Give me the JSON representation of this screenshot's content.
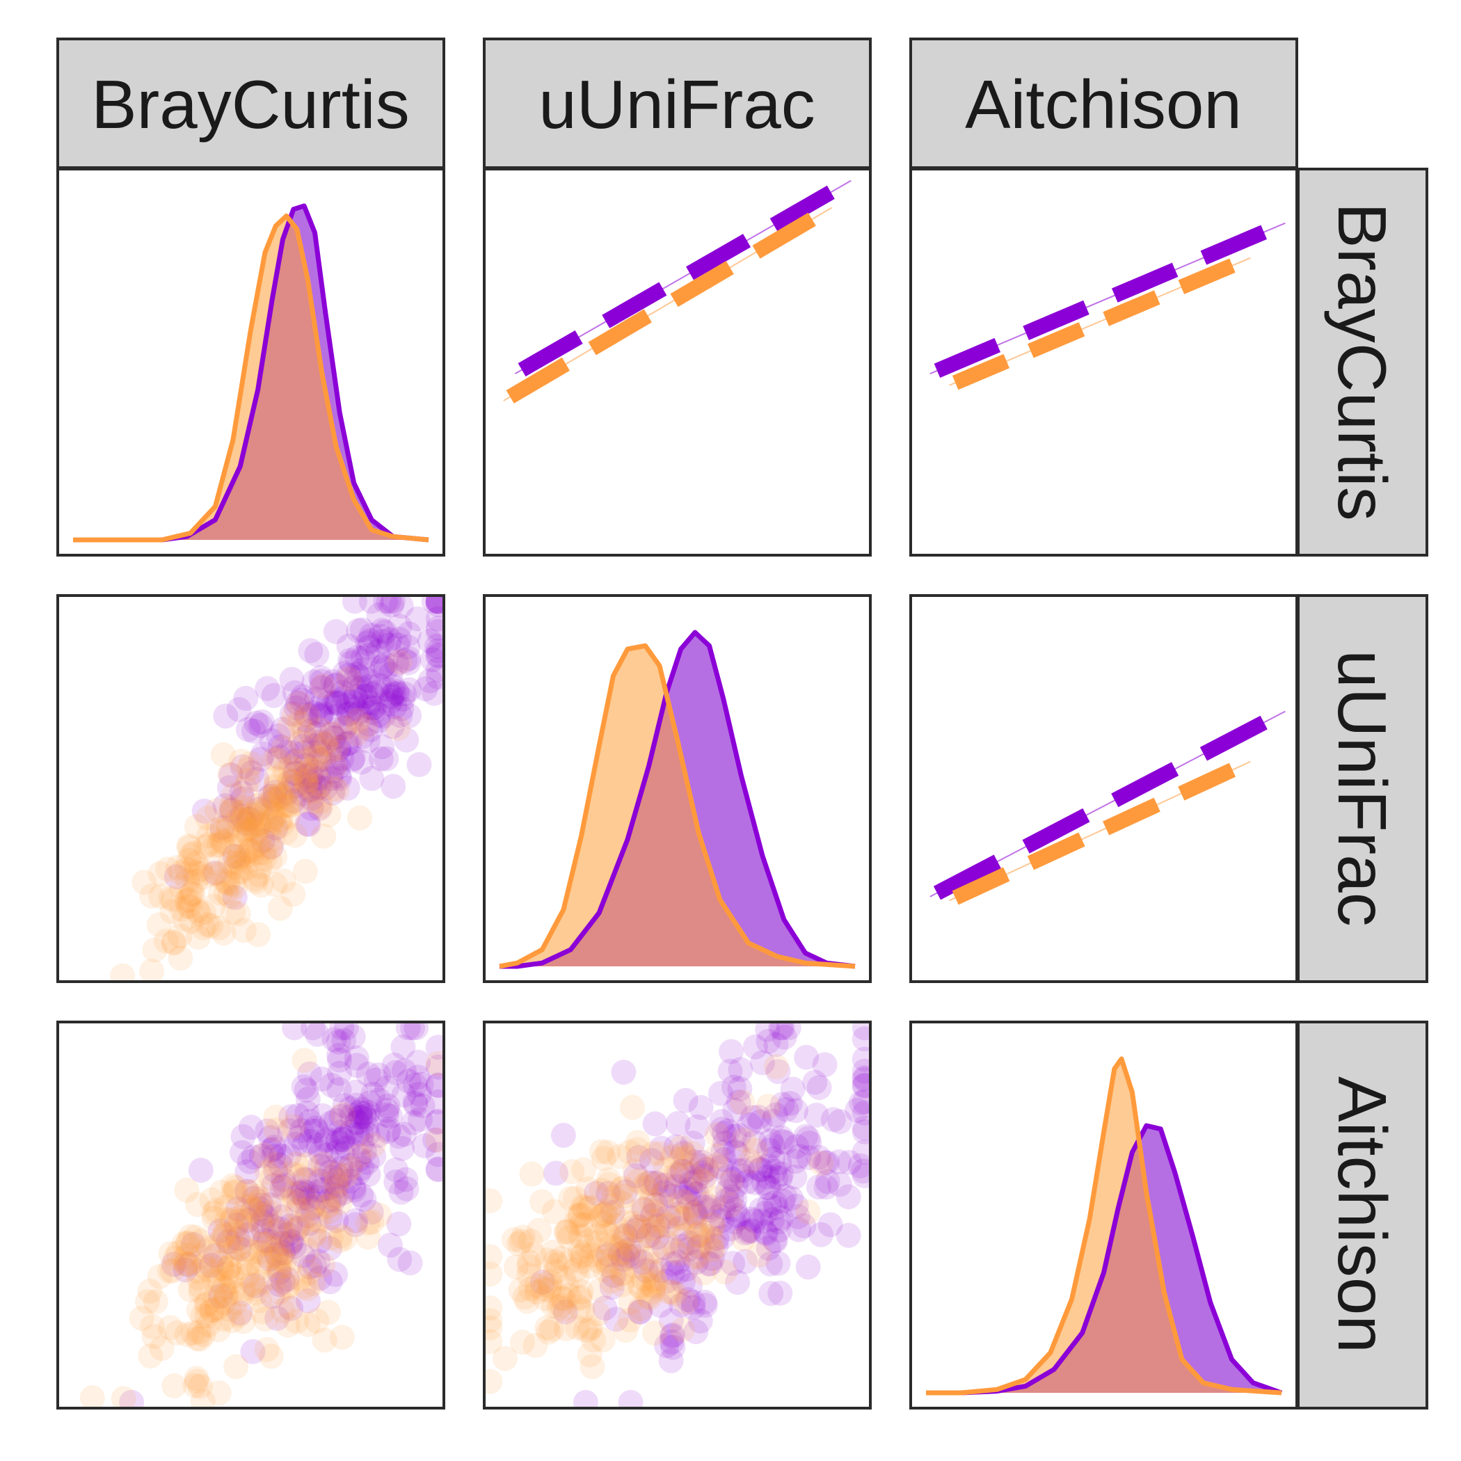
{
  "colors": {
    "group_a": "#8B00D6",
    "group_a_fill": "#B56FE3",
    "group_b": "#FF9A3C",
    "group_b_fill": "#FDCB93",
    "overlap_fill": "#DE8A86",
    "strip_bg": "#D3D3D3",
    "panel_border": "#2B2B2B"
  },
  "chart_data": {
    "type": "pairs-matrix",
    "variables": [
      "BrayCurtis",
      "uUniFrac",
      "Aitchison"
    ],
    "column_strips": [
      "BrayCurtis",
      "uUniFrac",
      "Aitchison"
    ],
    "row_strips": [
      "BrayCurtis",
      "uUniFrac",
      "Aitchison"
    ],
    "axis_ticks_shown": false,
    "grid": false,
    "legend": "none",
    "groups": [
      "a",
      "b"
    ],
    "density": {
      "BrayCurtis": {
        "a": [
          [
            0,
            0
          ],
          [
            0.15,
            0
          ],
          [
            0.25,
            0
          ],
          [
            0.32,
            0.01
          ],
          [
            0.4,
            0.06
          ],
          [
            0.47,
            0.22
          ],
          [
            0.52,
            0.45
          ],
          [
            0.56,
            0.72
          ],
          [
            0.59,
            0.9
          ],
          [
            0.62,
            0.99
          ],
          [
            0.65,
            1.0
          ],
          [
            0.68,
            0.92
          ],
          [
            0.71,
            0.68
          ],
          [
            0.75,
            0.38
          ],
          [
            0.79,
            0.17
          ],
          [
            0.84,
            0.06
          ],
          [
            0.9,
            0.01
          ],
          [
            1.0,
            0
          ]
        ],
        "b": [
          [
            0,
            0
          ],
          [
            0.15,
            0
          ],
          [
            0.25,
            0
          ],
          [
            0.33,
            0.02
          ],
          [
            0.4,
            0.1
          ],
          [
            0.45,
            0.3
          ],
          [
            0.5,
            0.63
          ],
          [
            0.54,
            0.86
          ],
          [
            0.57,
            0.94
          ],
          [
            0.6,
            0.97
          ],
          [
            0.63,
            0.93
          ],
          [
            0.66,
            0.78
          ],
          [
            0.7,
            0.5
          ],
          [
            0.74,
            0.28
          ],
          [
            0.79,
            0.12
          ],
          [
            0.84,
            0.03
          ],
          [
            0.9,
            0.01
          ],
          [
            1.0,
            0
          ]
        ]
      },
      "uUniFrac": {
        "a": [
          [
            0,
            0
          ],
          [
            0.05,
            0
          ],
          [
            0.12,
            0.01
          ],
          [
            0.2,
            0.05
          ],
          [
            0.28,
            0.16
          ],
          [
            0.36,
            0.38
          ],
          [
            0.42,
            0.6
          ],
          [
            0.47,
            0.82
          ],
          [
            0.51,
            0.95
          ],
          [
            0.55,
            1.0
          ],
          [
            0.59,
            0.96
          ],
          [
            0.63,
            0.8
          ],
          [
            0.68,
            0.57
          ],
          [
            0.74,
            0.33
          ],
          [
            0.8,
            0.14
          ],
          [
            0.86,
            0.04
          ],
          [
            0.92,
            0.01
          ],
          [
            1.0,
            0
          ]
        ],
        "b": [
          [
            0,
            0
          ],
          [
            0.05,
            0.01
          ],
          [
            0.12,
            0.05
          ],
          [
            0.18,
            0.17
          ],
          [
            0.23,
            0.39
          ],
          [
            0.28,
            0.66
          ],
          [
            0.32,
            0.87
          ],
          [
            0.36,
            0.95
          ],
          [
            0.41,
            0.96
          ],
          [
            0.45,
            0.9
          ],
          [
            0.5,
            0.68
          ],
          [
            0.56,
            0.4
          ],
          [
            0.62,
            0.2
          ],
          [
            0.7,
            0.07
          ],
          [
            0.78,
            0.03
          ],
          [
            0.86,
            0.01
          ],
          [
            0.93,
            0.005
          ],
          [
            1.0,
            0
          ]
        ]
      },
      "Aitchison": {
        "a": [
          [
            0,
            0
          ],
          [
            0.1,
            0
          ],
          [
            0.2,
            0.005
          ],
          [
            0.28,
            0.02
          ],
          [
            0.36,
            0.07
          ],
          [
            0.44,
            0.18
          ],
          [
            0.5,
            0.36
          ],
          [
            0.54,
            0.55
          ],
          [
            0.58,
            0.72
          ],
          [
            0.62,
            0.8
          ],
          [
            0.66,
            0.79
          ],
          [
            0.7,
            0.66
          ],
          [
            0.75,
            0.47
          ],
          [
            0.8,
            0.27
          ],
          [
            0.86,
            0.1
          ],
          [
            0.92,
            0.03
          ],
          [
            1.0,
            0
          ]
        ],
        "b": [
          [
            0,
            0
          ],
          [
            0.1,
            0
          ],
          [
            0.2,
            0.01
          ],
          [
            0.28,
            0.04
          ],
          [
            0.35,
            0.12
          ],
          [
            0.41,
            0.28
          ],
          [
            0.46,
            0.52
          ],
          [
            0.5,
            0.78
          ],
          [
            0.53,
            0.97
          ],
          [
            0.55,
            1.0
          ],
          [
            0.58,
            0.9
          ],
          [
            0.62,
            0.6
          ],
          [
            0.67,
            0.3
          ],
          [
            0.72,
            0.1
          ],
          [
            0.78,
            0.03
          ],
          [
            0.86,
            0.01
          ],
          [
            1.0,
            0
          ]
        ]
      }
    },
    "correlation_bars": [
      {
        "row": "BrayCurtis",
        "col": "uUniFrac",
        "a": {
          "x": [
            0.08,
            0.95
          ],
          "y": [
            0.47,
            0.97
          ]
        },
        "b": {
          "x": [
            0.05,
            0.9
          ],
          "y": [
            0.4,
            0.9
          ]
        }
      },
      {
        "row": "BrayCurtis",
        "col": "Aitchison",
        "a": {
          "x": [
            0.05,
            0.97
          ],
          "y": [
            0.47,
            0.86
          ]
        },
        "b": {
          "x": [
            0.1,
            0.88
          ],
          "y": [
            0.44,
            0.77
          ]
        }
      },
      {
        "row": "uUniFrac",
        "col": "Aitchison",
        "a": {
          "x": [
            0.05,
            0.97
          ],
          "y": [
            0.22,
            0.7
          ]
        },
        "b": {
          "x": [
            0.1,
            0.88
          ],
          "y": [
            0.21,
            0.57
          ]
        }
      }
    ],
    "scatter_clouds": [
      {
        "row": "uUniFrac",
        "col": "BrayCurtis",
        "x": "BrayCurtis",
        "y": "uUniFrac",
        "a": {
          "center": [
            0.72,
            0.68
          ],
          "spread": [
            0.15,
            0.16
          ],
          "rho": 0.7,
          "n": 260
        },
        "b": {
          "center": [
            0.5,
            0.38
          ],
          "spread": [
            0.13,
            0.16
          ],
          "rho": 0.75,
          "n": 240
        }
      },
      {
        "row": "Aitchison",
        "col": "BrayCurtis",
        "x": "BrayCurtis",
        "y": "Aitchison",
        "a": {
          "center": [
            0.68,
            0.6
          ],
          "spread": [
            0.15,
            0.18
          ],
          "rho": 0.6,
          "n": 260
        },
        "b": {
          "center": [
            0.5,
            0.4
          ],
          "spread": [
            0.15,
            0.15
          ],
          "rho": 0.55,
          "n": 240
        }
      },
      {
        "row": "Aitchison",
        "col": "uUniFrac",
        "x": "uUniFrac",
        "y": "Aitchison",
        "a": {
          "center": [
            0.65,
            0.58
          ],
          "spread": [
            0.18,
            0.18
          ],
          "rho": 0.5,
          "n": 280
        },
        "b": {
          "center": [
            0.35,
            0.43
          ],
          "spread": [
            0.17,
            0.14
          ],
          "rho": 0.5,
          "n": 260
        }
      }
    ]
  }
}
